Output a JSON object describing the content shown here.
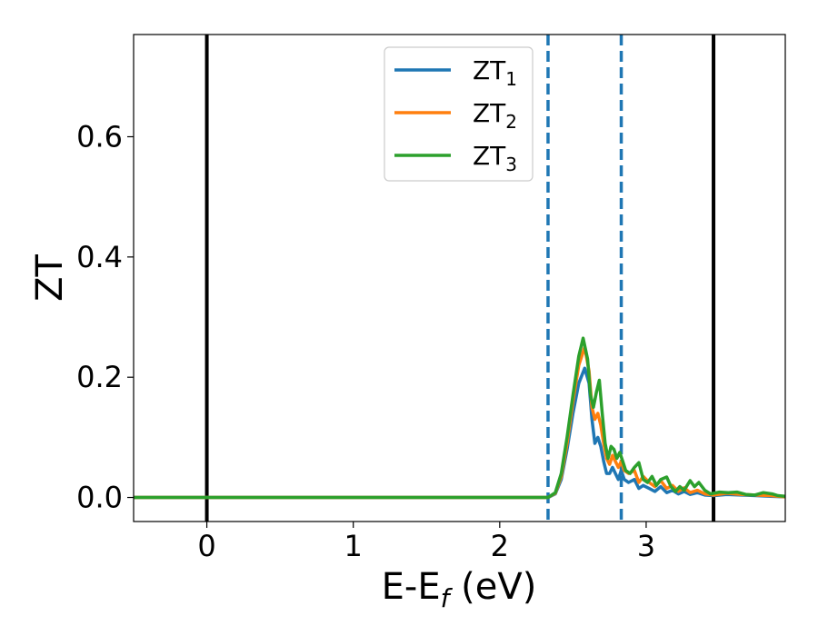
{
  "chart_data": {
    "type": "line",
    "title": "",
    "xlabel": {
      "main": "E-E",
      "sub": "f",
      "unit": " (eV)"
    },
    "ylabel": "ZT",
    "xlim": [
      -0.5,
      3.95
    ],
    "ylim": [
      -0.04,
      0.77
    ],
    "xticks": [
      0,
      1,
      2,
      3
    ],
    "xtick_labels": [
      "0",
      "1",
      "2",
      "3"
    ],
    "yticks": [
      0.0,
      0.2,
      0.4,
      0.6
    ],
    "ytick_labels": [
      "0.0",
      "0.2",
      "0.4",
      "0.6"
    ],
    "grid": false,
    "legend_position": "top-center",
    "vlines": [
      {
        "x": 0.0,
        "style": "solid",
        "color": "#000000"
      },
      {
        "x": 3.46,
        "style": "solid",
        "color": "#000000"
      },
      {
        "x": 2.33,
        "style": "dashed",
        "color": "#1f77b4"
      },
      {
        "x": 2.83,
        "style": "dashed",
        "color": "#1f77b4"
      }
    ],
    "series": [
      {
        "name": "ZT",
        "name_sub": "1",
        "color": "#1f77b4",
        "points": [
          [
            -0.5,
            0
          ],
          [
            2.33,
            0
          ],
          [
            2.38,
            0.006
          ],
          [
            2.42,
            0.03
          ],
          [
            2.46,
            0.08
          ],
          [
            2.5,
            0.14
          ],
          [
            2.54,
            0.19
          ],
          [
            2.58,
            0.215
          ],
          [
            2.61,
            0.19
          ],
          [
            2.63,
            0.13
          ],
          [
            2.65,
            0.09
          ],
          [
            2.67,
            0.1
          ],
          [
            2.69,
            0.085
          ],
          [
            2.71,
            0.06
          ],
          [
            2.73,
            0.04
          ],
          [
            2.75,
            0.04
          ],
          [
            2.77,
            0.05
          ],
          [
            2.79,
            0.04
          ],
          [
            2.81,
            0.03
          ],
          [
            2.83,
            0.045
          ],
          [
            2.85,
            0.03
          ],
          [
            2.88,
            0.025
          ],
          [
            2.92,
            0.03
          ],
          [
            2.95,
            0.015
          ],
          [
            2.98,
            0.02
          ],
          [
            3.02,
            0.015
          ],
          [
            3.06,
            0.01
          ],
          [
            3.1,
            0.018
          ],
          [
            3.14,
            0.008
          ],
          [
            3.18,
            0.012
          ],
          [
            3.22,
            0.006
          ],
          [
            3.26,
            0.01
          ],
          [
            3.3,
            0.005
          ],
          [
            3.35,
            0.008
          ],
          [
            3.4,
            0.004
          ],
          [
            3.46,
            0.003
          ],
          [
            3.55,
            0.005
          ],
          [
            3.65,
            0.004
          ],
          [
            3.75,
            0.003
          ],
          [
            3.85,
            0.002
          ],
          [
            3.95,
            0.001
          ]
        ]
      },
      {
        "name": "ZT",
        "name_sub": "2",
        "color": "#ff7f0e",
        "points": [
          [
            -0.5,
            0
          ],
          [
            2.33,
            0
          ],
          [
            2.38,
            0.007
          ],
          [
            2.42,
            0.035
          ],
          [
            2.46,
            0.09
          ],
          [
            2.5,
            0.16
          ],
          [
            2.54,
            0.22
          ],
          [
            2.58,
            0.25
          ],
          [
            2.61,
            0.21
          ],
          [
            2.63,
            0.15
          ],
          [
            2.65,
            0.13
          ],
          [
            2.67,
            0.14
          ],
          [
            2.69,
            0.12
          ],
          [
            2.71,
            0.09
          ],
          [
            2.73,
            0.065
          ],
          [
            2.75,
            0.055
          ],
          [
            2.77,
            0.07
          ],
          [
            2.79,
            0.06
          ],
          [
            2.81,
            0.05
          ],
          [
            2.83,
            0.06
          ],
          [
            2.85,
            0.045
          ],
          [
            2.88,
            0.04
          ],
          [
            2.92,
            0.045
          ],
          [
            2.95,
            0.025
          ],
          [
            2.98,
            0.035
          ],
          [
            3.02,
            0.025
          ],
          [
            3.06,
            0.018
          ],
          [
            3.1,
            0.028
          ],
          [
            3.14,
            0.015
          ],
          [
            3.18,
            0.02
          ],
          [
            3.22,
            0.01
          ],
          [
            3.26,
            0.016
          ],
          [
            3.3,
            0.008
          ],
          [
            3.35,
            0.012
          ],
          [
            3.4,
            0.006
          ],
          [
            3.46,
            0.004
          ],
          [
            3.55,
            0.007
          ],
          [
            3.65,
            0.005
          ],
          [
            3.75,
            0.004
          ],
          [
            3.85,
            0.003
          ],
          [
            3.95,
            0.001
          ]
        ]
      },
      {
        "name": "ZT",
        "name_sub": "3",
        "color": "#2ca02c",
        "points": [
          [
            -0.5,
            0
          ],
          [
            2.33,
            0
          ],
          [
            2.38,
            0.008
          ],
          [
            2.42,
            0.04
          ],
          [
            2.46,
            0.1
          ],
          [
            2.5,
            0.17
          ],
          [
            2.54,
            0.235
          ],
          [
            2.57,
            0.265
          ],
          [
            2.6,
            0.23
          ],
          [
            2.62,
            0.17
          ],
          [
            2.64,
            0.15
          ],
          [
            2.66,
            0.175
          ],
          [
            2.68,
            0.195
          ],
          [
            2.7,
            0.14
          ],
          [
            2.72,
            0.09
          ],
          [
            2.74,
            0.065
          ],
          [
            2.76,
            0.085
          ],
          [
            2.78,
            0.08
          ],
          [
            2.8,
            0.065
          ],
          [
            2.82,
            0.075
          ],
          [
            2.84,
            0.06
          ],
          [
            2.86,
            0.045
          ],
          [
            2.89,
            0.04
          ],
          [
            2.92,
            0.05
          ],
          [
            2.95,
            0.058
          ],
          [
            2.98,
            0.03
          ],
          [
            3.01,
            0.025
          ],
          [
            3.04,
            0.035
          ],
          [
            3.07,
            0.02
          ],
          [
            3.1,
            0.03
          ],
          [
            3.14,
            0.034
          ],
          [
            3.17,
            0.018
          ],
          [
            3.2,
            0.01
          ],
          [
            3.23,
            0.018
          ],
          [
            3.26,
            0.012
          ],
          [
            3.3,
            0.028
          ],
          [
            3.33,
            0.018
          ],
          [
            3.36,
            0.025
          ],
          [
            3.4,
            0.012
          ],
          [
            3.44,
            0.006
          ],
          [
            3.5,
            0.009
          ],
          [
            3.56,
            0.008
          ],
          [
            3.62,
            0.009
          ],
          [
            3.68,
            0.005
          ],
          [
            3.74,
            0.004
          ],
          [
            3.8,
            0.008
          ],
          [
            3.86,
            0.006
          ],
          [
            3.9,
            0.003
          ],
          [
            3.95,
            0.002
          ]
        ]
      }
    ]
  }
}
